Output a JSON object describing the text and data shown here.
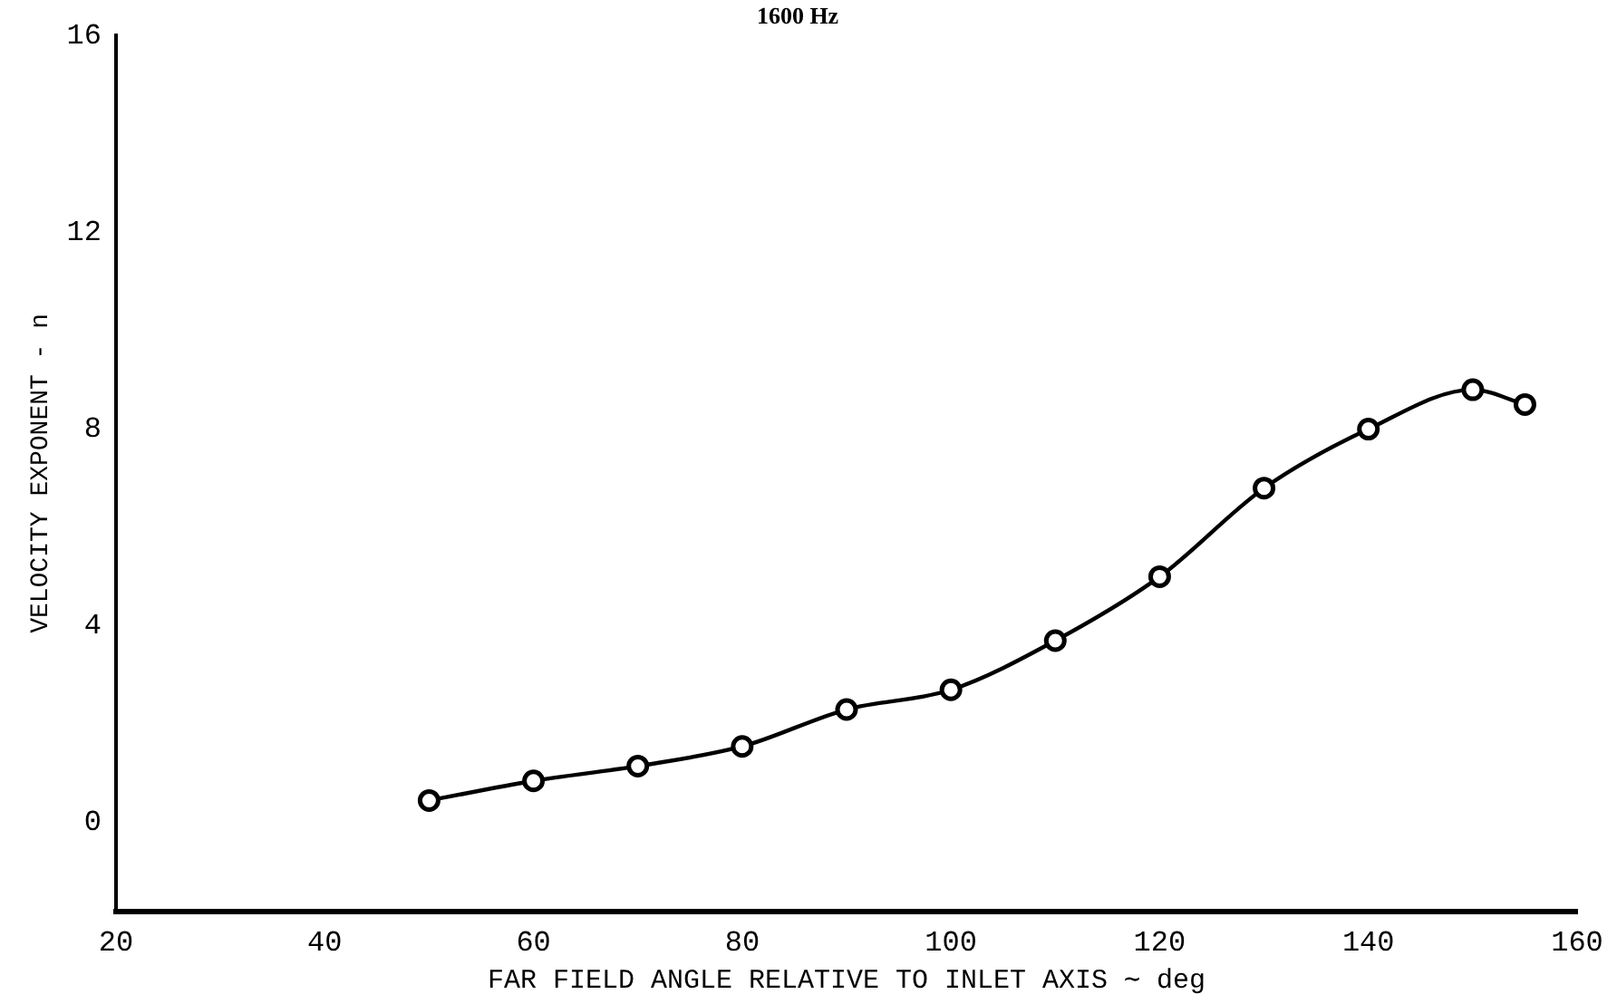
{
  "chart_data": {
    "type": "line",
    "title": "1600 Hz",
    "xlabel": "FAR FIELD ANGLE RELATIVE TO INLET AXIS ∼ deg",
    "ylabel": "VELOCITY EXPONENT - n",
    "x": [
      50,
      60,
      70,
      80,
      90,
      100,
      110,
      120,
      130,
      140,
      150,
      155
    ],
    "series": [
      {
        "color": "#000000",
        "values": [
          0.45,
          0.85,
          1.15,
          1.55,
          2.3,
          2.7,
          3.7,
          5.0,
          6.8,
          8.0,
          8.8,
          8.5
        ]
      }
    ],
    "xlim": [
      20,
      160
    ],
    "xticks": [
      20,
      40,
      60,
      80,
      100,
      120,
      140,
      160
    ],
    "ylim": [
      -1.8,
      16
    ],
    "yticks": [
      0,
      4,
      8,
      12,
      16
    ],
    "grid": false,
    "legend": false,
    "marker": "circle",
    "line_style": "solid"
  }
}
